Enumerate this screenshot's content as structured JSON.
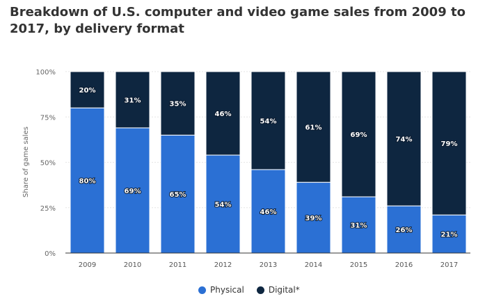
{
  "chart_data": {
    "type": "bar",
    "stacked": true,
    "title": "Breakdown of U.S. computer and video game sales from 2009 to 2017, by delivery  format",
    "xlabel": "",
    "ylabel": "Share of game sales",
    "ylim": [
      0,
      100
    ],
    "yticks": [
      "0%",
      "25%",
      "50%",
      "75%",
      "100%"
    ],
    "grid": true,
    "legend_position": "bottom",
    "categories": [
      "2009",
      "2010",
      "2011",
      "2012",
      "2013",
      "2014",
      "2015",
      "2016",
      "2017"
    ],
    "series": [
      {
        "name": "Physical",
        "color": "#2b70d4",
        "values": [
          80,
          69,
          65,
          54,
          46,
          39,
          31,
          26,
          21
        ]
      },
      {
        "name": "Digital*",
        "color": "#0e2640",
        "values": [
          20,
          31,
          35,
          46,
          54,
          61,
          69,
          74,
          79
        ]
      }
    ]
  }
}
